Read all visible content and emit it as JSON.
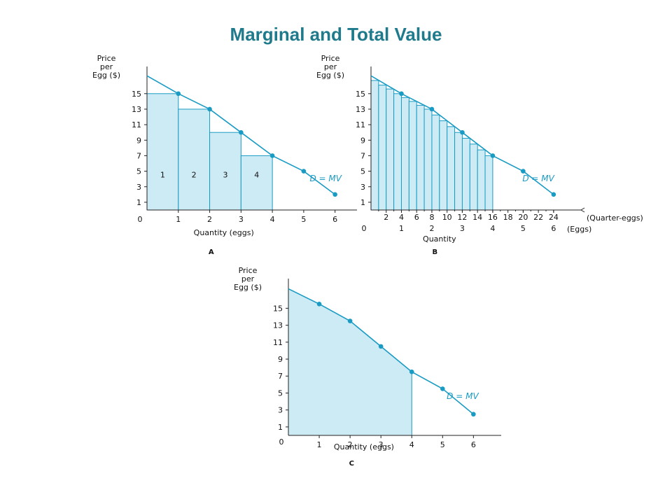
{
  "title": "Marginal and Total Value",
  "colors": {
    "title": "#1f7a8c",
    "curve": "#1a9bc4",
    "fill": "#cdebf4",
    "axis": "#222222"
  },
  "chart_data": [
    {
      "id": "A",
      "type": "bar",
      "panel_label": "A",
      "ylabel_lines": [
        "Price",
        "per",
        "Egg ($)"
      ],
      "xlabel": "Quantity (eggs)",
      "xlim": [
        0,
        6.7
      ],
      "ylim": [
        0,
        18.5
      ],
      "yticks": [
        1,
        3,
        5,
        7,
        9,
        11,
        13,
        15
      ],
      "xticks": [
        0,
        1,
        2,
        3,
        4,
        5,
        6
      ],
      "origin_label": "0",
      "bars": [
        {
          "x0": 0,
          "x1": 1,
          "value": 15,
          "label": "1"
        },
        {
          "x0": 1,
          "x1": 2,
          "value": 13,
          "label": "2"
        },
        {
          "x0": 2,
          "x1": 3,
          "value": 10,
          "label": "3"
        },
        {
          "x0": 3,
          "x1": 4,
          "value": 7,
          "label": "4"
        }
      ],
      "demand_line": [
        [
          0,
          17.3
        ],
        [
          1,
          15
        ],
        [
          2,
          13
        ],
        [
          3,
          10
        ],
        [
          4,
          7
        ],
        [
          5,
          5
        ],
        [
          6,
          2
        ]
      ],
      "points": [
        [
          1,
          15
        ],
        [
          2,
          13
        ],
        [
          3,
          10
        ],
        [
          4,
          7
        ],
        [
          5,
          5
        ],
        [
          6,
          2
        ]
      ],
      "curve_label": "D = MV",
      "curve_label_at": [
        5.7,
        3.7
      ]
    },
    {
      "id": "B",
      "type": "bar",
      "panel_label": "B",
      "ylabel_lines": [
        "Price",
        "per",
        "Egg ($)"
      ],
      "xlabel": "Quantity",
      "xlim": [
        0,
        6.9
      ],
      "ylim": [
        0,
        18.5
      ],
      "yticks": [
        1,
        3,
        5,
        7,
        9,
        11,
        13,
        15
      ],
      "xticks": [
        0,
        1,
        2,
        3,
        4,
        5,
        6
      ],
      "origin_label": "0",
      "top_axis_ticks": [
        2,
        4,
        6,
        8,
        10,
        12,
        14,
        16,
        18,
        20,
        22,
        24
      ],
      "top_axis_unit": "(Quarter-eggs)",
      "bottom_axis_unit": "(Eggs)",
      "bars": [
        {
          "x0": 0,
          "x1": 0.25,
          "value": 16.7
        },
        {
          "x0": 0.25,
          "x1": 0.5,
          "value": 16.1
        },
        {
          "x0": 0.5,
          "x1": 0.75,
          "value": 15.6
        },
        {
          "x0": 0.75,
          "x1": 1,
          "value": 15
        },
        {
          "x0": 1,
          "x1": 1.25,
          "value": 14.5
        },
        {
          "x0": 1.25,
          "x1": 1.5,
          "value": 14
        },
        {
          "x0": 1.5,
          "x1": 1.75,
          "value": 13.5
        },
        {
          "x0": 1.75,
          "x1": 2,
          "value": 13
        },
        {
          "x0": 2,
          "x1": 2.25,
          "value": 12.25
        },
        {
          "x0": 2.25,
          "x1": 2.5,
          "value": 11.5
        },
        {
          "x0": 2.5,
          "x1": 2.75,
          "value": 10.75
        },
        {
          "x0": 2.75,
          "x1": 3,
          "value": 10
        },
        {
          "x0": 3,
          "x1": 3.25,
          "value": 9.25
        },
        {
          "x0": 3.25,
          "x1": 3.5,
          "value": 8.5
        },
        {
          "x0": 3.5,
          "x1": 3.75,
          "value": 7.75
        },
        {
          "x0": 3.75,
          "x1": 4,
          "value": 7
        }
      ],
      "demand_line": [
        [
          0,
          17.3
        ],
        [
          1,
          15
        ],
        [
          2,
          13
        ],
        [
          3,
          10
        ],
        [
          4,
          7
        ],
        [
          5,
          5
        ],
        [
          6,
          2
        ]
      ],
      "points": [
        [
          1,
          15
        ],
        [
          2,
          13
        ],
        [
          3,
          10
        ],
        [
          4,
          7
        ],
        [
          5,
          5
        ],
        [
          6,
          2
        ]
      ],
      "curve_label": "D = MV",
      "curve_label_at": [
        5.5,
        3.7
      ]
    },
    {
      "id": "C",
      "type": "area",
      "panel_label": "C",
      "ylabel_lines": [
        "Price",
        "per",
        "Egg ($)"
      ],
      "xlabel": "Quantity (eggs)",
      "xlim": [
        0,
        6.9
      ],
      "ylim": [
        0,
        18.5
      ],
      "yticks": [
        1,
        3,
        5,
        7,
        9,
        11,
        13,
        15
      ],
      "xticks": [
        1,
        2,
        3,
        4,
        5,
        6
      ],
      "origin_label": "0",
      "area": [
        [
          0,
          17.3
        ],
        [
          1,
          15.5
        ],
        [
          2,
          13.5
        ],
        [
          3,
          10.5
        ],
        [
          4,
          7.5
        ]
      ],
      "demand_line": [
        [
          0,
          17.3
        ],
        [
          1,
          15.5
        ],
        [
          2,
          13.5
        ],
        [
          3,
          10.5
        ],
        [
          4,
          7.5
        ],
        [
          5,
          5.5
        ],
        [
          6,
          2.5
        ]
      ],
      "points": [
        [
          1,
          15.5
        ],
        [
          2,
          13.5
        ],
        [
          3,
          10.5
        ],
        [
          4,
          7.5
        ],
        [
          5,
          5.5
        ],
        [
          6,
          2.5
        ]
      ],
      "curve_label": "D = MV",
      "curve_label_at": [
        5.65,
        4.3
      ]
    }
  ]
}
